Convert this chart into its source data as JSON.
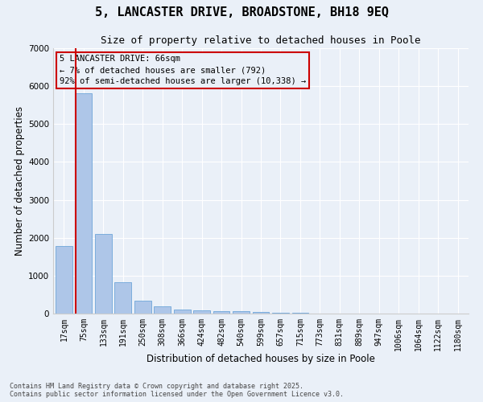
{
  "title": "5, LANCASTER DRIVE, BROADSTONE, BH18 9EQ",
  "subtitle": "Size of property relative to detached houses in Poole",
  "xlabel": "Distribution of detached houses by size in Poole",
  "ylabel": "Number of detached properties",
  "categories": [
    "17sqm",
    "75sqm",
    "133sqm",
    "191sqm",
    "250sqm",
    "308sqm",
    "366sqm",
    "424sqm",
    "482sqm",
    "540sqm",
    "599sqm",
    "657sqm",
    "715sqm",
    "773sqm",
    "831sqm",
    "889sqm",
    "947sqm",
    "1006sqm",
    "1064sqm",
    "1122sqm",
    "1180sqm"
  ],
  "values": [
    1780,
    5820,
    2090,
    820,
    340,
    185,
    115,
    95,
    65,
    55,
    40,
    25,
    15,
    8,
    4,
    3,
    2,
    1,
    1,
    0,
    0
  ],
  "bar_color": "#aec6e8",
  "bar_edge_color": "#5b9bd5",
  "vline_color": "#cc0000",
  "ylim": [
    0,
    7000
  ],
  "yticks": [
    0,
    1000,
    2000,
    3000,
    4000,
    5000,
    6000,
    7000
  ],
  "annotation_line1": "5 LANCASTER DRIVE: 66sqm",
  "annotation_line2": "← 7% of detached houses are smaller (792)",
  "annotation_line3": "92% of semi-detached houses are larger (10,338) →",
  "bg_color": "#eaf0f8",
  "grid_color": "#ffffff",
  "footer": "Contains HM Land Registry data © Crown copyright and database right 2025.\nContains public sector information licensed under the Open Government Licence v3.0.",
  "title_fontsize": 11,
  "subtitle_fontsize": 9,
  "axis_label_fontsize": 8.5,
  "tick_fontsize": 7,
  "annotation_fontsize": 7.5,
  "footer_fontsize": 6
}
